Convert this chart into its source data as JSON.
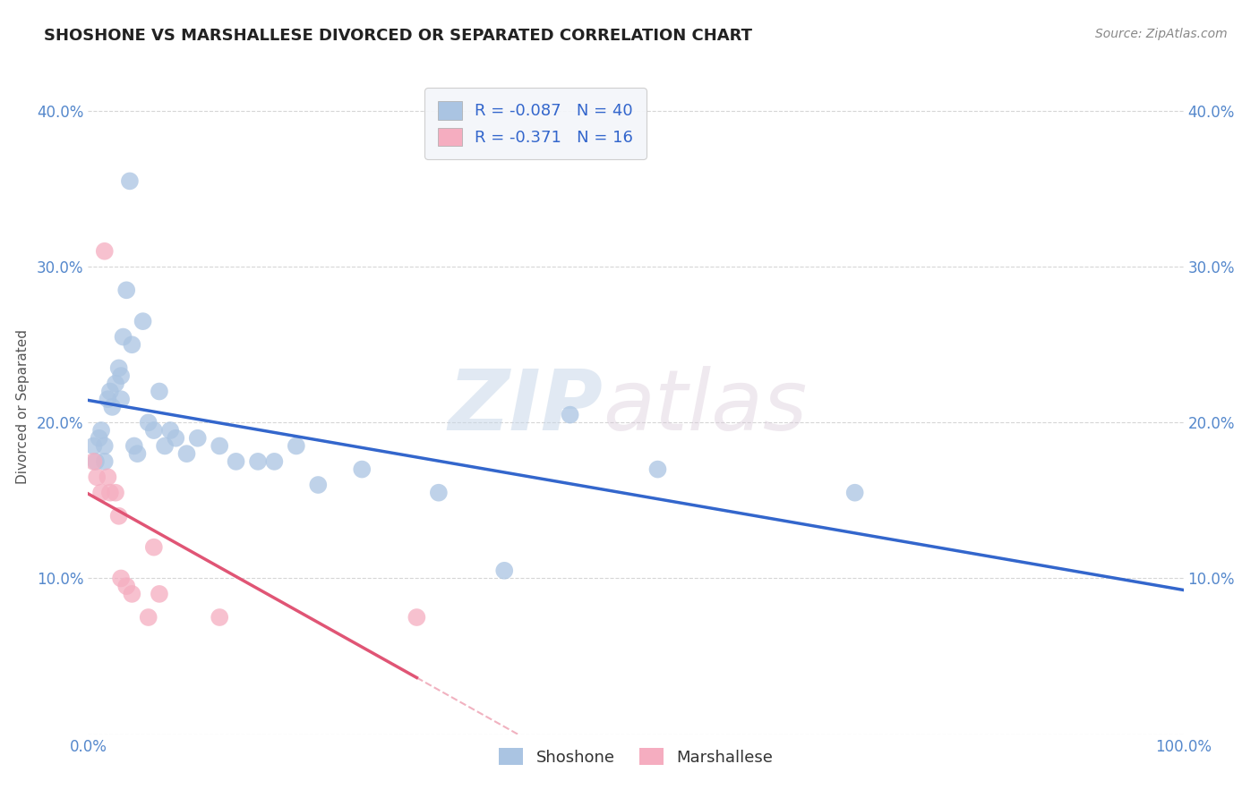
{
  "title": "SHOSHONE VS MARSHALLESE DIVORCED OR SEPARATED CORRELATION CHART",
  "source": "Source: ZipAtlas.com",
  "ylabel": "Divorced or Separated",
  "xlim": [
    0,
    1.0
  ],
  "ylim": [
    0,
    0.42
  ],
  "shoshone_R": -0.087,
  "shoshone_N": 40,
  "marshallese_R": -0.371,
  "marshallese_N": 16,
  "shoshone_color": "#aac4e2",
  "marshallese_color": "#f5adc0",
  "shoshone_line_color": "#3366cc",
  "marshallese_line_color": "#e05575",
  "shoshone_x": [
    0.005,
    0.007,
    0.01,
    0.012,
    0.015,
    0.015,
    0.018,
    0.02,
    0.022,
    0.025,
    0.028,
    0.03,
    0.03,
    0.032,
    0.035,
    0.038,
    0.04,
    0.042,
    0.045,
    0.05,
    0.055,
    0.06,
    0.065,
    0.07,
    0.075,
    0.08,
    0.09,
    0.1,
    0.12,
    0.135,
    0.155,
    0.17,
    0.19,
    0.21,
    0.25,
    0.32,
    0.38,
    0.44,
    0.52,
    0.7
  ],
  "shoshone_y": [
    0.185,
    0.175,
    0.19,
    0.195,
    0.185,
    0.175,
    0.215,
    0.22,
    0.21,
    0.225,
    0.235,
    0.23,
    0.215,
    0.255,
    0.285,
    0.355,
    0.25,
    0.185,
    0.18,
    0.265,
    0.2,
    0.195,
    0.22,
    0.185,
    0.195,
    0.19,
    0.18,
    0.19,
    0.185,
    0.175,
    0.175,
    0.175,
    0.185,
    0.16,
    0.17,
    0.155,
    0.105,
    0.205,
    0.17,
    0.155
  ],
  "marshallese_x": [
    0.005,
    0.008,
    0.012,
    0.015,
    0.018,
    0.02,
    0.025,
    0.028,
    0.03,
    0.035,
    0.04,
    0.055,
    0.06,
    0.065,
    0.12,
    0.3
  ],
  "marshallese_y": [
    0.175,
    0.165,
    0.155,
    0.31,
    0.165,
    0.155,
    0.155,
    0.14,
    0.1,
    0.095,
    0.09,
    0.075,
    0.12,
    0.09,
    0.075,
    0.075
  ],
  "background_color": "#ffffff",
  "grid_color": "#cccccc",
  "watermark_zip": "ZIP",
  "watermark_atlas": "atlas",
  "title_fontsize": 13,
  "source_fontsize": 10,
  "tick_fontsize": 12,
  "ylabel_fontsize": 11
}
